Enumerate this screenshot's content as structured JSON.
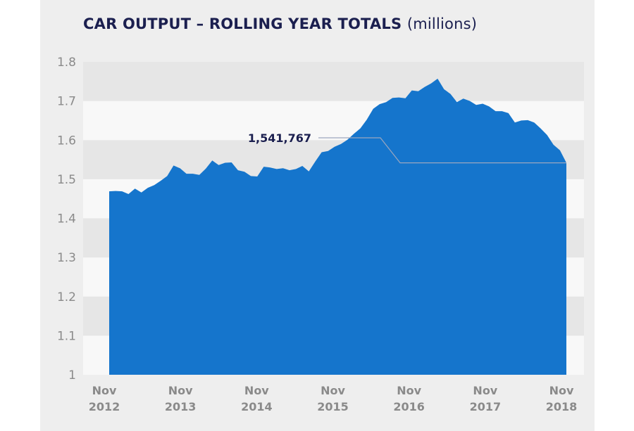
{
  "chart_data": {
    "type": "area",
    "title": "CAR OUTPUT – ROLLING YEAR TOTALS",
    "subtitle": "(millions)",
    "xlabel": "",
    "ylabel": "",
    "ylim": [
      1,
      1.8
    ],
    "yticks": [
      "1",
      "1.1",
      "1.2",
      "1.3",
      "1.4",
      "1.5",
      "1.6",
      "1.7",
      "1.8"
    ],
    "xtick_labels": [
      {
        "month": "Nov",
        "year": "2012"
      },
      {
        "month": "Nov",
        "year": "2013"
      },
      {
        "month": "Nov",
        "year": "2014"
      },
      {
        "month": "Nov",
        "year": "2015"
      },
      {
        "month": "Nov",
        "year": "2016"
      },
      {
        "month": "Nov",
        "year": "2017"
      },
      {
        "month": "Nov",
        "year": "2018"
      }
    ],
    "x_start": "Nov 2012",
    "x_end": "Nov 2018",
    "grid": "horizontal alternating bands",
    "color": "#1575cc",
    "values": [
      1.469,
      1.47,
      1.469,
      1.462,
      1.476,
      1.466,
      1.478,
      1.485,
      1.496,
      1.508,
      1.535,
      1.528,
      1.514,
      1.514,
      1.511,
      1.527,
      1.548,
      1.536,
      1.542,
      1.543,
      1.523,
      1.519,
      1.508,
      1.507,
      1.532,
      1.53,
      1.526,
      1.528,
      1.523,
      1.526,
      1.534,
      1.52,
      1.545,
      1.569,
      1.572,
      1.583,
      1.59,
      1.601,
      1.616,
      1.63,
      1.652,
      1.68,
      1.692,
      1.697,
      1.708,
      1.709,
      1.707,
      1.727,
      1.725,
      1.736,
      1.745,
      1.757,
      1.73,
      1.718,
      1.697,
      1.706,
      1.7,
      1.69,
      1.693,
      1.686,
      1.674,
      1.674,
      1.669,
      1.645,
      1.65,
      1.651,
      1.645,
      1.63,
      1.613,
      1.588,
      1.574,
      1.542
    ],
    "annotation": {
      "label": "1,541,767",
      "value": 1.541767
    }
  }
}
